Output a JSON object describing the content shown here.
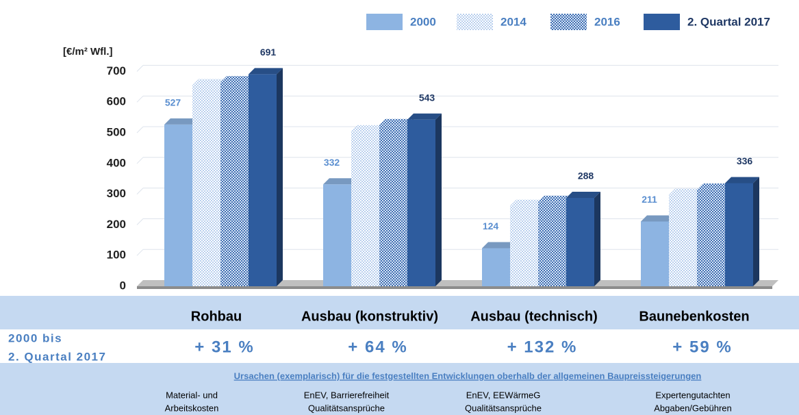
{
  "chart_data": {
    "type": "bar3d",
    "ylabel": "[€/m² Wfl.]",
    "categories": [
      "Rohbau",
      "Ausbau (konstruktiv)",
      "Ausbau (technisch)",
      "Baunebenkosten"
    ],
    "series": [
      {
        "name": "2000",
        "color": "#8db4e2",
        "pattern": null,
        "show_labels": true,
        "label_color": "#5b8fd0",
        "values": [
          527,
          332,
          124,
          211
        ]
      },
      {
        "name": "2014",
        "color": "#c6d9f1",
        "pattern": "light",
        "show_labels": false,
        "values": [
          655,
          505,
          262,
          298
        ]
      },
      {
        "name": "2016",
        "color": "#6f97cc",
        "pattern": "dense",
        "show_labels": false,
        "values": [
          665,
          525,
          275,
          315
        ]
      },
      {
        "name": "2. Quartal 2017",
        "color": "#2e5c9e",
        "pattern": null,
        "show_labels": true,
        "label_color": "#1f3864",
        "values": [
          691,
          543,
          288,
          336
        ]
      }
    ],
    "ylim": [
      0,
      750
    ],
    "yticks": [
      0,
      100,
      200,
      300,
      400,
      500,
      600,
      700
    ],
    "grid": true,
    "legend": "top-right"
  },
  "table": {
    "change_label": [
      "2000 bis",
      "2. Quartal 2017"
    ],
    "changes": [
      "+ 31 %",
      "+ 64 %",
      "+ 132 %",
      "+ 59 %"
    ],
    "causes_title": "Ursachen (exemplarisch) für die festgestellten Entwicklungen oberhalb der allgemeinen Baupreissteigerungen",
    "causes": [
      [
        "Material- und",
        "Arbeitskosten"
      ],
      [
        "EnEV, Barrierefreiheit",
        "Qualitätsansprüche"
      ],
      [
        "EnEV, EEWärmeG",
        "Qualitätsansprüche"
      ],
      [
        "Expertengutachten",
        "Abgaben/Gebühren"
      ]
    ]
  }
}
